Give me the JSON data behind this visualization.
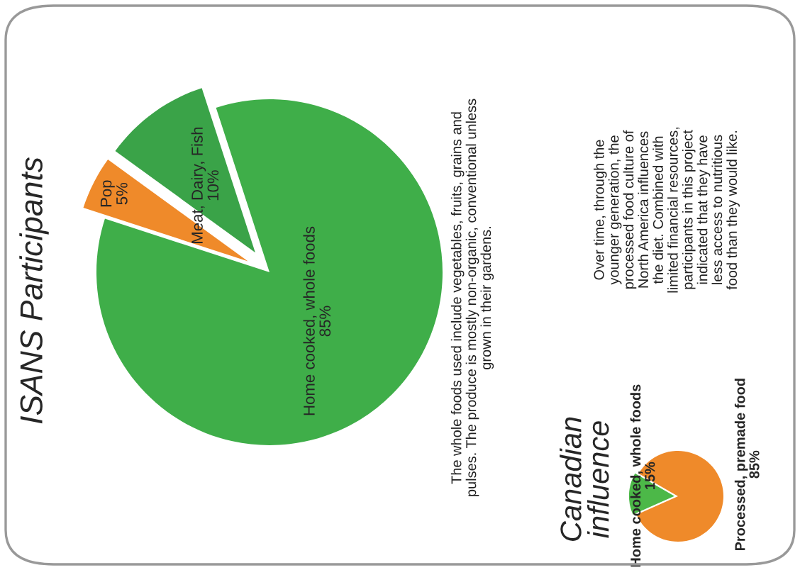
{
  "chart_data": [
    {
      "type": "pie",
      "title": "ISANS Participants",
      "categories": [
        "Home cooked, whole foods",
        "Meat, Dairy, Fish",
        "Pop"
      ],
      "values": [
        85,
        10,
        5
      ],
      "value_labels": [
        "85%",
        "10%",
        "5%"
      ],
      "colors": [
        "#3fae49",
        "#3aa348",
        "#ef8a2a"
      ],
      "annotations": [
        "The whole foods used include vegetables, fruits, grains and\npulses. The produce is mostly non-organic, conventional unless\ngrown in their gardens."
      ]
    },
    {
      "type": "pie",
      "title": "Canadian\ninfluence",
      "categories": [
        "Home cooked, whole foods",
        "Processed, premade food"
      ],
      "values": [
        15,
        85
      ],
      "value_labels": [
        "15%",
        "85%"
      ],
      "colors": [
        "#4cb848",
        "#ef8a2a"
      ],
      "annotations": [
        "Over time, through the\nyounger generation, the\nprocessed food culture of\nNorth America influences\nthe diet. Combined with\nlimited financial resources,\nparticipants in this project\nindicated that they have\nless access to nutritious\nfood than they would like."
      ]
    }
  ]
}
